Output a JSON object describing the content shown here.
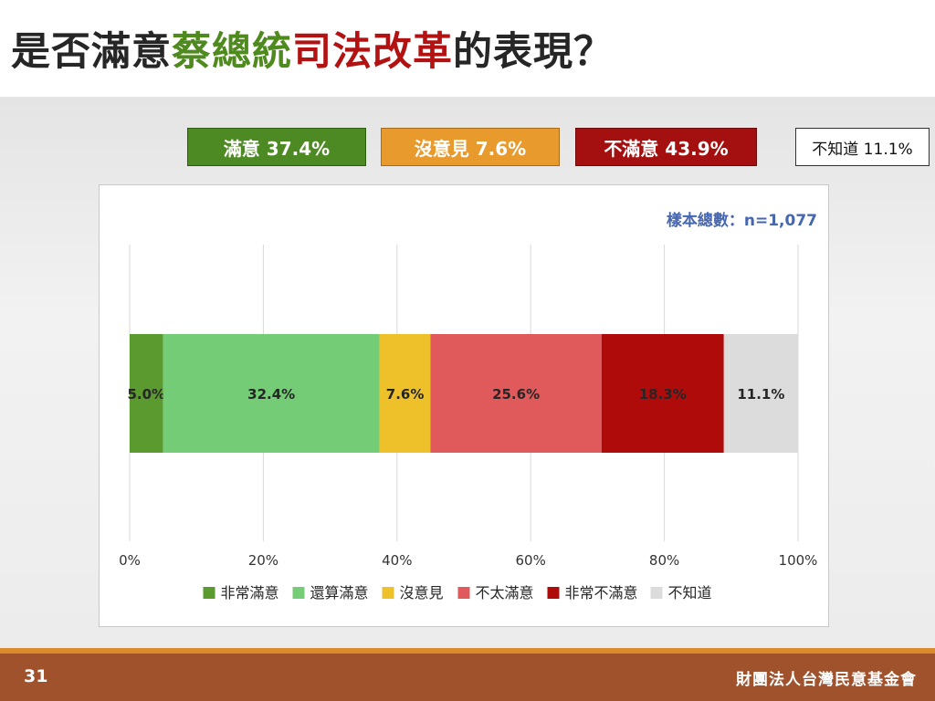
{
  "title": {
    "part1": "是否滿意",
    "part2": "蔡總統",
    "part3": "司法改革",
    "part4": "的表現？"
  },
  "summary": {
    "satisfied": "滿意 37.4%",
    "no_opinion": "沒意見 7.6%",
    "dissatisfied": "不滿意 43.9%",
    "unknown": "不知道 11.1%"
  },
  "sample_size": "樣本總數：n=1,077",
  "footer": {
    "page_number": "31",
    "organization": "財團法人台灣民意基金會"
  },
  "colors": {
    "very_satisfied": "#5a9a2e",
    "somewhat_satisfied": "#74cc76",
    "no_opinion": "#eec12b",
    "not_very_satisfied": "#e05a5c",
    "very_dissatisfied": "#b00b0b",
    "dont_know": "#dcdcdc"
  },
  "chart_data": {
    "type": "bar",
    "orientation": "horizontal",
    "stacked": true,
    "xlim": [
      0,
      100
    ],
    "x_ticks": [
      "0%",
      "20%",
      "40%",
      "60%",
      "80%",
      "100%"
    ],
    "x_tick_values": [
      0,
      20,
      40,
      60,
      80,
      100
    ],
    "grid": true,
    "legend_position": "bottom",
    "series": [
      {
        "name": "非常滿意",
        "value": 5.0,
        "label": "5.0%",
        "color": "#5a9a2e"
      },
      {
        "name": "還算滿意",
        "value": 32.4,
        "label": "32.4%",
        "color": "#74cc76"
      },
      {
        "name": "沒意見",
        "value": 7.6,
        "label": "7.6%",
        "color": "#eec12b"
      },
      {
        "name": "不太滿意",
        "value": 25.6,
        "label": "25.6%",
        "color": "#e05a5c"
      },
      {
        "name": "非常不滿意",
        "value": 18.3,
        "label": "18.3%",
        "color": "#b00b0b"
      },
      {
        "name": "不知道",
        "value": 11.1,
        "label": "11.1%",
        "color": "#dcdcdc"
      }
    ]
  }
}
